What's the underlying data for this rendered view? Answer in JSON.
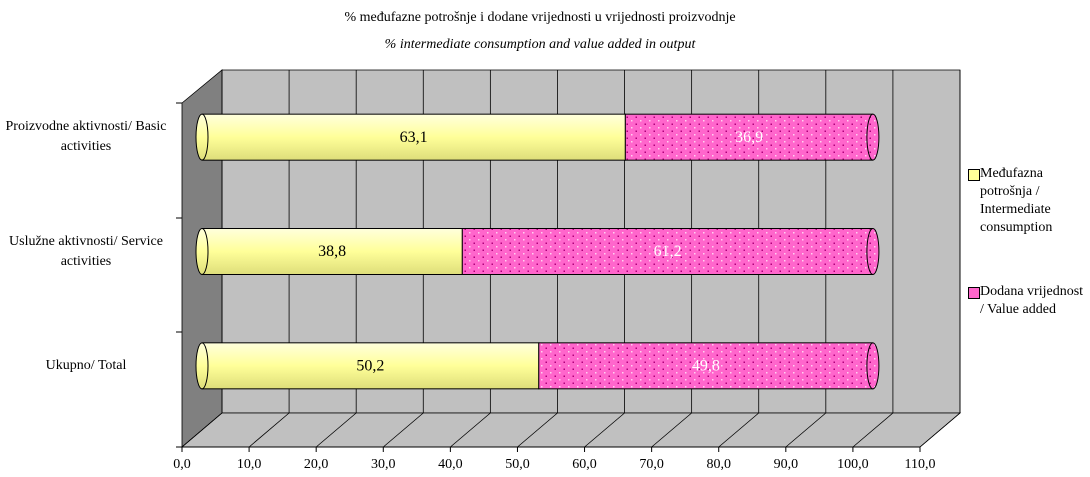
{
  "chart_data": {
    "type": "stacked_bar_horizontal",
    "title": "% međufazne potrošnje i dodane vrijednosti u vrijednosti proizvodnje",
    "subtitle": "% intermediate consumption and value added in output",
    "categories": [
      "Proizvodne aktivnosti/ Basic activities",
      "Uslužne aktivnosti/ Service activities",
      "Ukupno/ Total"
    ],
    "series": [
      {
        "name": "Međufazna potrošnja / Intermediate consumption",
        "color": "#ffff99",
        "value_label_color": "#000000",
        "values": [
          63.1,
          38.8,
          50.2
        ],
        "value_labels": [
          "63,1",
          "38,8",
          "50,2"
        ]
      },
      {
        "name": "Dodana vrijednost / Value added",
        "color": "#ff66cc",
        "value_label_color": "#ffffff",
        "values": [
          36.9,
          61.2,
          49.8
        ],
        "value_labels": [
          "36,9",
          "61,2",
          "49,8"
        ]
      }
    ],
    "xlim": [
      0,
      110
    ],
    "xticks": [
      {
        "value": 0,
        "label": "0,0"
      },
      {
        "value": 10,
        "label": "10,0"
      },
      {
        "value": 20,
        "label": "20,0"
      },
      {
        "value": 30,
        "label": "30,0"
      },
      {
        "value": 40,
        "label": "40,0"
      },
      {
        "value": 50,
        "label": "50,0"
      },
      {
        "value": 60,
        "label": "60,0"
      },
      {
        "value": 70,
        "label": "70,0"
      },
      {
        "value": 80,
        "label": "80,0"
      },
      {
        "value": 90,
        "label": "90,0"
      },
      {
        "value": 100,
        "label": "100,0"
      },
      {
        "value": 110,
        "label": "110,0"
      }
    ],
    "grid": true,
    "legend": "right"
  }
}
